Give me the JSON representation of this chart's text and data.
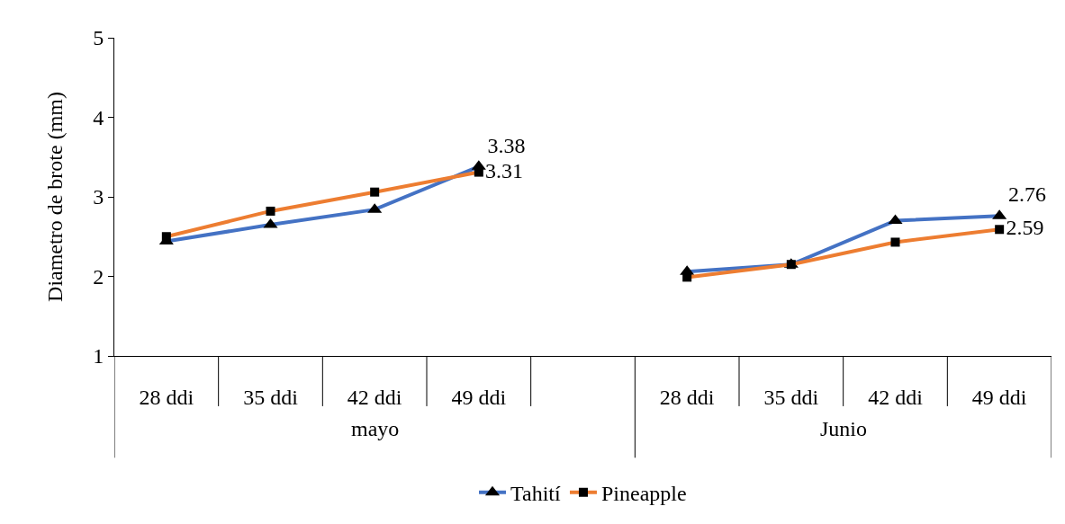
{
  "chart_data": {
    "type": "line",
    "ylabel": "Diametro de brote (mm)",
    "categories": [
      "28 ddi",
      "35 ddi",
      "42 ddi",
      "49 ddi",
      null,
      "28 ddi",
      "35 ddi",
      "42 ddi",
      "49 ddi"
    ],
    "annotations": [
      "mayo",
      "Junio"
    ],
    "series": [
      {
        "name": "Tahití",
        "color": "#4472c4",
        "marker": "triangle",
        "values": [
          2.44,
          2.65,
          2.84,
          3.38,
          null,
          2.06,
          2.15,
          2.7,
          2.76
        ],
        "value_labels": [
          null,
          null,
          null,
          "3.38",
          null,
          null,
          null,
          null,
          "2.76"
        ]
      },
      {
        "name": "Pineapple",
        "color": "#ed7d31",
        "marker": "square",
        "values": [
          2.5,
          2.82,
          3.06,
          3.31,
          null,
          1.99,
          2.15,
          2.43,
          2.59
        ],
        "value_labels": [
          null,
          null,
          null,
          "3.31",
          null,
          null,
          null,
          null,
          "2.59"
        ]
      }
    ],
    "ylim": [
      1,
      5
    ],
    "yticks": [
      1,
      2,
      3,
      4,
      5
    ],
    "grid": false,
    "legend": "bottom",
    "line_style": "solid"
  }
}
